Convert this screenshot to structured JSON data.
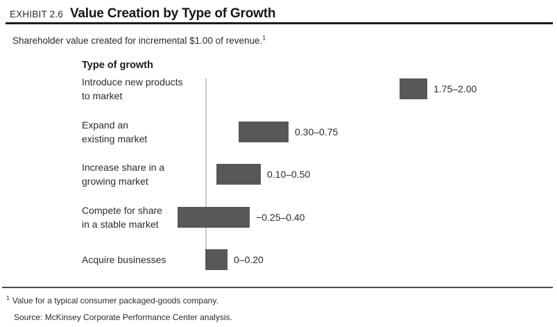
{
  "header": {
    "exhibit_label": "EXHIBIT 2.6",
    "title": "Value Creation by Type of Growth"
  },
  "subtitle": {
    "text": "Shareholder value created for incremental $1.00 of revenue.",
    "footnote_marker": "1"
  },
  "chart_data": {
    "type": "bar",
    "orientation": "horizontal",
    "column_header": "Type of growth",
    "baseline": 0,
    "xlim": [
      -0.5,
      2.25
    ],
    "bar_color": "#58585a",
    "axis_color": "#c8c8c8",
    "bars": [
      {
        "category": "Introduce new products to market",
        "label_lines": [
          "Introduce new products",
          "to market"
        ],
        "min": 1.75,
        "max": 2.0,
        "value_label": "1.75–2.00"
      },
      {
        "category": "Expand an existing market",
        "label_lines": [
          "Expand an",
          "existing market"
        ],
        "min": 0.3,
        "max": 0.75,
        "value_label": "0.30–0.75"
      },
      {
        "category": "Increase share in a growing market",
        "label_lines": [
          "Increase share in a",
          "growing market"
        ],
        "min": 0.1,
        "max": 0.5,
        "value_label": "0.10–0.50"
      },
      {
        "category": "Compete for share in a stable market",
        "label_lines": [
          "Compete for share",
          "in a stable market"
        ],
        "min": -0.25,
        "max": 0.4,
        "value_label": "−0.25–0.40"
      },
      {
        "category": "Acquire businesses",
        "label_lines": [
          "Acquire businesses"
        ],
        "min": 0,
        "max": 0.2,
        "value_label": "0–0.20"
      }
    ]
  },
  "footnotes": {
    "marker": "1",
    "note": "Value for a typical consumer packaged-goods company.",
    "source": "Source: McKinsey Corporate Performance Center analysis."
  }
}
